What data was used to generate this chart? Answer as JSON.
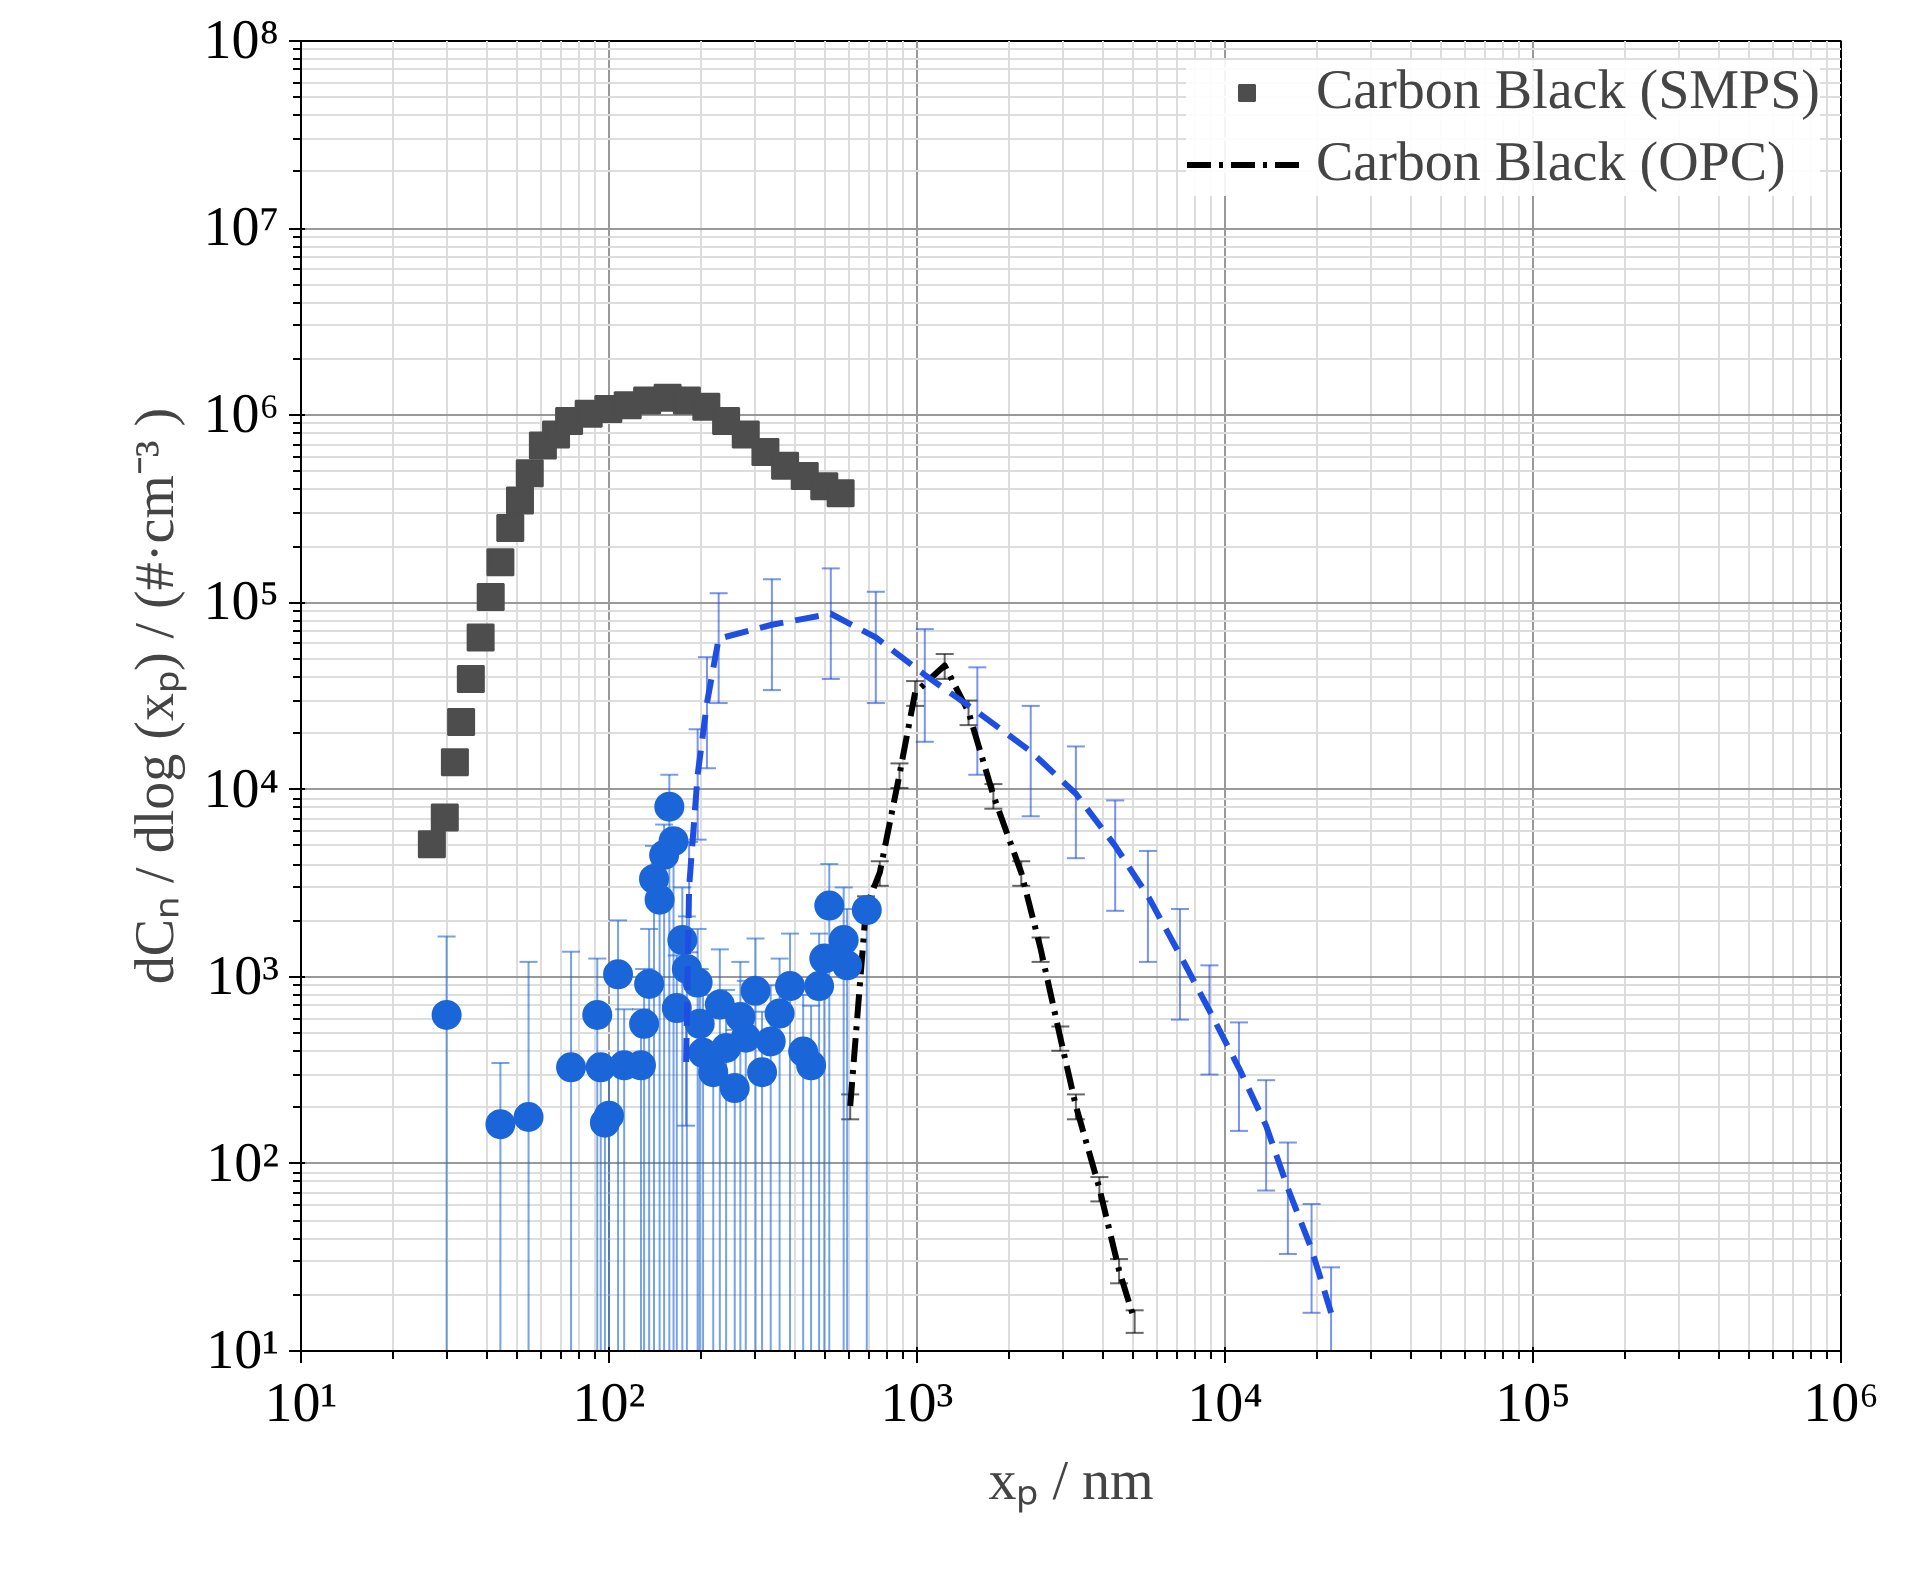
{
  "chart_data": {
    "type": "scatter",
    "xlabel": "xₚ / nm",
    "ylabel": "dCₙ / dlog (xₚ) / (#·cm⁻³ )",
    "log": "xy",
    "grid": true,
    "legend": "top right",
    "xlim": [
      10,
      1000000
    ],
    "ylim": [
      10,
      100000000
    ],
    "xticks": [
      {
        "value": 10,
        "label": "10¹"
      },
      {
        "value": 100,
        "label": "10²"
      },
      {
        "value": 1000,
        "label": "10³"
      },
      {
        "value": 10000,
        "label": "10⁴"
      },
      {
        "value": 100000,
        "label": "10⁵"
      },
      {
        "value": 1000000,
        "label": "10⁶"
      }
    ],
    "yticks": [
      {
        "value": 10,
        "label": "10¹"
      },
      {
        "value": 100,
        "label": "10²"
      },
      {
        "value": 1000,
        "label": "10³"
      },
      {
        "value": 10000,
        "label": "10⁴"
      },
      {
        "value": 100000,
        "label": "10⁵"
      },
      {
        "value": 1000000,
        "label": "10⁶"
      },
      {
        "value": 10000000,
        "label": "10⁷"
      },
      {
        "value": 100000000,
        "label": "10⁸"
      }
    ],
    "series": [
      {
        "name": "Carbon Black (SMPS)",
        "color": "#4d4d4d",
        "marker": "square",
        "x": [
          26.6,
          29.3,
          31.6,
          33.1,
          35.6,
          38.3,
          41.3,
          44.4,
          47.8,
          51.4,
          55.3,
          61,
          67.3,
          74.2,
          85.9,
          99.5,
          115,
          133,
          155,
          179,
          207,
          240,
          278,
          322,
          373,
          432,
          500,
          565
        ],
        "values": [
          5100,
          7100,
          14000,
          23000,
          39000,
          65000,
          107000,
          164000,
          250000,
          350000,
          490000,
          690000,
          790000,
          933000,
          1020000,
          1080000,
          1130000,
          1200000,
          1240000,
          1200000,
          1110000,
          933000,
          789000,
          637000,
          538000,
          474000,
          418000,
          383000
        ]
      },
      {
        "type": "line",
        "name": "Carbon Black (OPC)",
        "color": "#000000",
        "line_style": "dashdot",
        "x": [
          607,
          683,
          757,
          877,
          986,
          1230,
          1470,
          1770,
          2180,
          2520,
          2920,
          3280,
          3910,
          4530,
          5090
        ],
        "values": [
          204,
          2340,
          3600,
          12000,
          33000,
          46000,
          26000,
          9300,
          3600,
          1410,
          472,
          204,
          74,
          27,
          14.5
        ],
        "errors": [
          31,
          350,
          540,
          1800,
          5000,
          7000,
          3900,
          1400,
          540,
          210,
          70,
          31,
          11,
          4,
          2
        ]
      },
      {
        "color": "#1a66d9",
        "marker": "circle",
        "x": [
          29.7,
          44.4,
          54.8,
          75.3,
          91.6,
          94,
          97,
          100,
          107,
          112,
          127,
          130,
          135,
          140,
          146,
          151,
          157,
          162,
          166,
          173,
          179,
          194,
          197,
          202,
          218,
          229,
          240,
          256,
          267,
          278,
          299,
          314,
          335,
          358,
          387,
          427,
          453,
          481,
          500,
          519,
          578,
          593,
          687
        ],
        "values": [
          625,
          163,
          178,
          328,
          625,
          328,
          166,
          181,
          1030,
          336,
          336,
          560,
          915,
          3330,
          2580,
          4470,
          8100,
          5300,
          680,
          1570,
          1100,
          930,
          560,
          392,
          309,
          710,
          416,
          254,
          610,
          472,
          841,
          309,
          451,
          635,
          891,
          398,
          336,
          891,
          1250,
          2400,
          1570,
          1150,
          2270
        ],
        "errors": [
          [
            10,
            1640
          ],
          [
            10,
            346
          ],
          [
            10,
            1200
          ],
          [
            10,
            1360
          ],
          [
            10,
            1250
          ],
          [
            10,
            328
          ],
          [
            10,
            166
          ],
          [
            10,
            360
          ],
          [
            10,
            2000
          ],
          [
            10,
            670
          ],
          [
            10,
            670
          ],
          [
            10,
            1100
          ],
          [
            10,
            1800
          ],
          [
            10,
            5000
          ],
          [
            10,
            4000
          ],
          [
            10,
            6500
          ],
          [
            10,
            12000
          ],
          [
            10,
            5300
          ],
          [
            10,
            1300
          ],
          [
            10,
            3000
          ],
          [
            10,
            2100
          ],
          [
            10,
            1800
          ],
          [
            10,
            1100
          ],
          [
            10,
            800
          ],
          [
            10,
            309
          ],
          [
            10,
            1400
          ],
          [
            10,
            850
          ],
          [
            10,
            520
          ],
          [
            10,
            1200
          ],
          [
            10,
            950
          ],
          [
            10,
            1600
          ],
          [
            10,
            650
          ],
          [
            10,
            900
          ],
          [
            10,
            1250
          ],
          [
            10,
            1700
          ],
          [
            10,
            800
          ],
          [
            10,
            700
          ],
          [
            10,
            1700
          ],
          [
            10,
            1250
          ],
          [
            10,
            4000
          ],
          [
            10,
            3000
          ],
          [
            10,
            2300
          ],
          [
            10,
            2500
          ]
        ]
      },
      {
        "type": "line",
        "color": "#1f4fe0",
        "line_style": "dashed",
        "x": [
          178,
          182,
          194,
          208,
          227,
          338,
          525,
          735,
          1060,
          1570,
          2340,
          3280,
          4400,
          5620,
          7140,
          8900,
          11100,
          13600,
          16000,
          19100,
          22100
        ],
        "values": [
          350,
          3000,
          12000,
          29000,
          64000,
          76000,
          87000,
          65000,
          41000,
          26000,
          16000,
          9500,
          5000,
          2700,
          1310,
          660,
          325,
          160,
          74,
          35,
          16
        ],
        "errors": [
          [
            160,
            610
          ],
          [
            1350,
            5250
          ],
          [
            5400,
            21000
          ],
          [
            13000,
            51000
          ],
          [
            29000,
            112000
          ],
          [
            34000,
            133000
          ],
          [
            39000,
            152000
          ],
          [
            29000,
            114000
          ],
          [
            18000,
            72000
          ],
          [
            12000,
            45000
          ],
          [
            7200,
            28000
          ],
          [
            4300,
            17000
          ],
          [
            2250,
            8750
          ],
          [
            1200,
            4700
          ],
          [
            590,
            2300
          ],
          [
            300,
            1150
          ],
          [
            150,
            570
          ],
          [
            72,
            280
          ],
          [
            33,
            130
          ],
          [
            16,
            61
          ],
          [
            10,
            28
          ]
        ]
      }
    ]
  }
}
